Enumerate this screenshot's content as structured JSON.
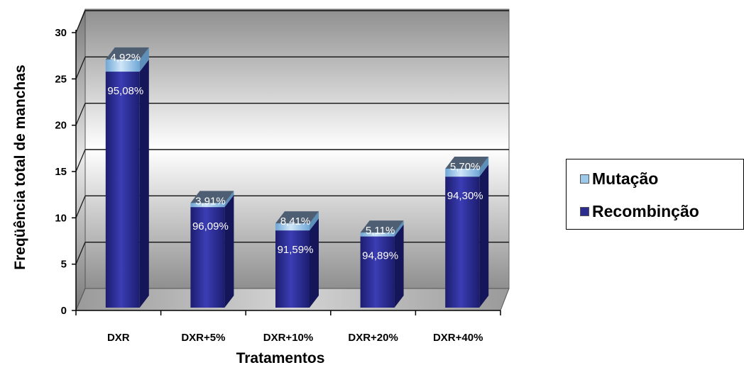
{
  "chart_data": {
    "type": "bar",
    "stacked": true,
    "three_d": true,
    "xlabel": "Tratamentos",
    "ylabel": "Freqüência total de manchas",
    "ylim": [
      0,
      30
    ],
    "yticks": [
      "0",
      "5",
      "10",
      "15",
      "20",
      "25",
      "30"
    ],
    "categories": [
      "DXR",
      "DXR+5%",
      "DXR+10%",
      "DXR+20%",
      "DXR+40%"
    ],
    "totals": [
      26.8,
      11.3,
      9.1,
      8.1,
      15.0
    ],
    "series": [
      {
        "name": "Recombinção",
        "color": "#2b2d8e",
        "percent_labels": [
          "95,08%",
          "96,09%",
          "91,59%",
          "94,89%",
          "94,30%"
        ]
      },
      {
        "name": "Mutação",
        "color": "#9cc8ea",
        "percent_labels": [
          "4,92%",
          "3,91%",
          "8,41%",
          "5,11%",
          "5,70%"
        ]
      }
    ],
    "legend_position": "right",
    "grid": true
  },
  "legend": {
    "items": [
      {
        "label": "Mutação",
        "color": "#9cc8ea"
      },
      {
        "label": "Recombinção",
        "color": "#2b2d8e"
      }
    ]
  }
}
